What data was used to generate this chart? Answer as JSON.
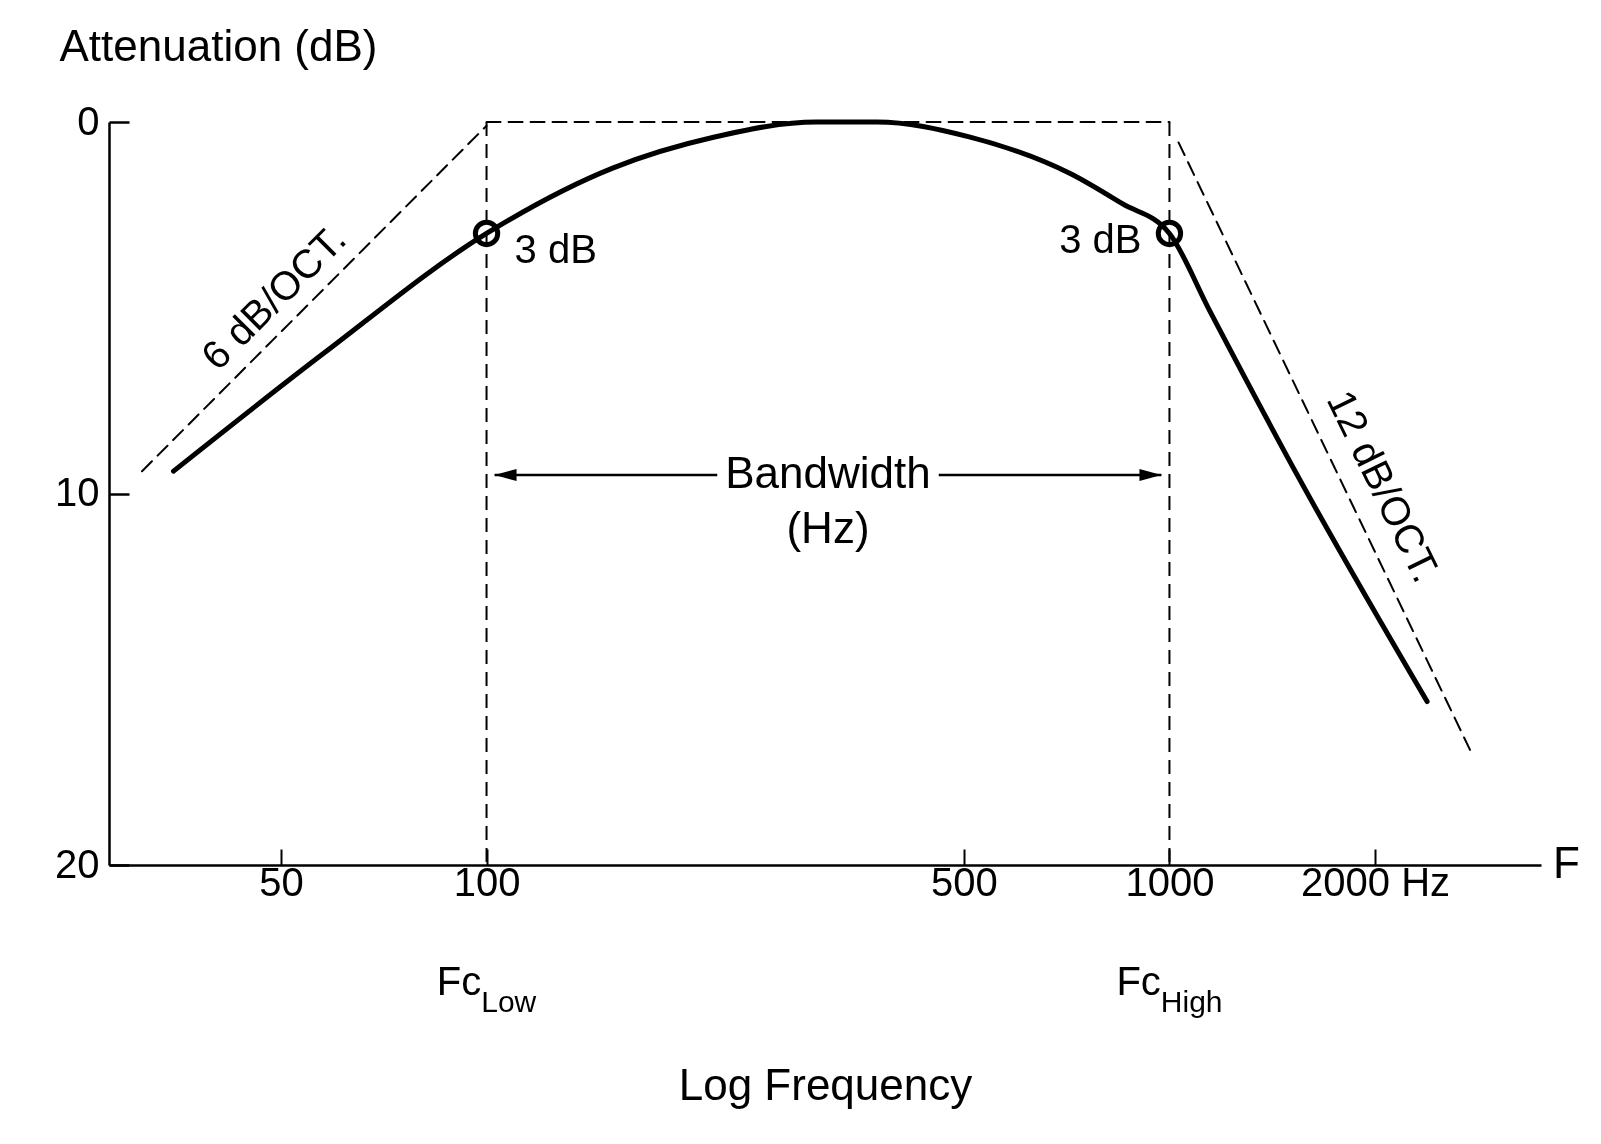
{
  "chart_data": {
    "type": "line",
    "xlabel": "Log Frequency",
    "ylabel": "Attenuation (dB)",
    "log": "x",
    "xlim": [
      28,
      3500
    ],
    "ylim": [
      20,
      0
    ],
    "xticks": [
      50,
      100,
      500,
      1000,
      {
        "value": 2000,
        "label": "2000 Hz"
      }
    ],
    "yticks": [
      0,
      10,
      20
    ],
    "series": [
      {
        "type": "line",
        "color": "#000000",
        "line_style": "solid",
        "x": [
          34.8,
          58,
          100,
          153,
          215,
          304,
          373,
          509,
          718,
          853,
          1000,
          1143,
          1549,
          2384
        ],
        "values": [
          9.4,
          6.2,
          3,
          1.24,
          0.41,
          0,
          0,
          0.4,
          1.4,
          2.2,
          3,
          5.05,
          9.6,
          15.6
        ]
      },
      {
        "type": "line",
        "color": "#000000",
        "line_style": "dashed",
        "x": [
          31.3,
          100
        ],
        "values": [
          9.4,
          0.1
        ]
      },
      {
        "type": "line",
        "color": "#000000",
        "line_style": "dashed",
        "x": [
          100,
          1000
        ],
        "values": [
          0,
          0
        ]
      },
      {
        "type": "line",
        "color": "#000000",
        "line_style": "dashed",
        "x": [
          1031,
          2755
        ],
        "values": [
          0.55,
          16.9
        ]
      },
      {
        "type": "scatter",
        "color": "#000000",
        "marker": "circle",
        "x": [
          100,
          1000
        ],
        "values": [
          3,
          3
        ]
      }
    ],
    "ref_lines": [
      {
        "axis": "x",
        "value": 100,
        "line_style": "dashed"
      },
      {
        "axis": "x",
        "value": 1000,
        "line_style": "dashed"
      }
    ],
    "annotations": [
      {
        "text": "3 dB",
        "x": 100,
        "y": 3
      },
      {
        "text": "3 dB",
        "x": 1000,
        "y": 3
      },
      "6 dB/OCT.",
      "12 dB/OCT.",
      "Bandwidth",
      "(Hz)",
      "F",
      "Fc$_{Low}$",
      "Fc$_{High}$"
    ]
  }
}
